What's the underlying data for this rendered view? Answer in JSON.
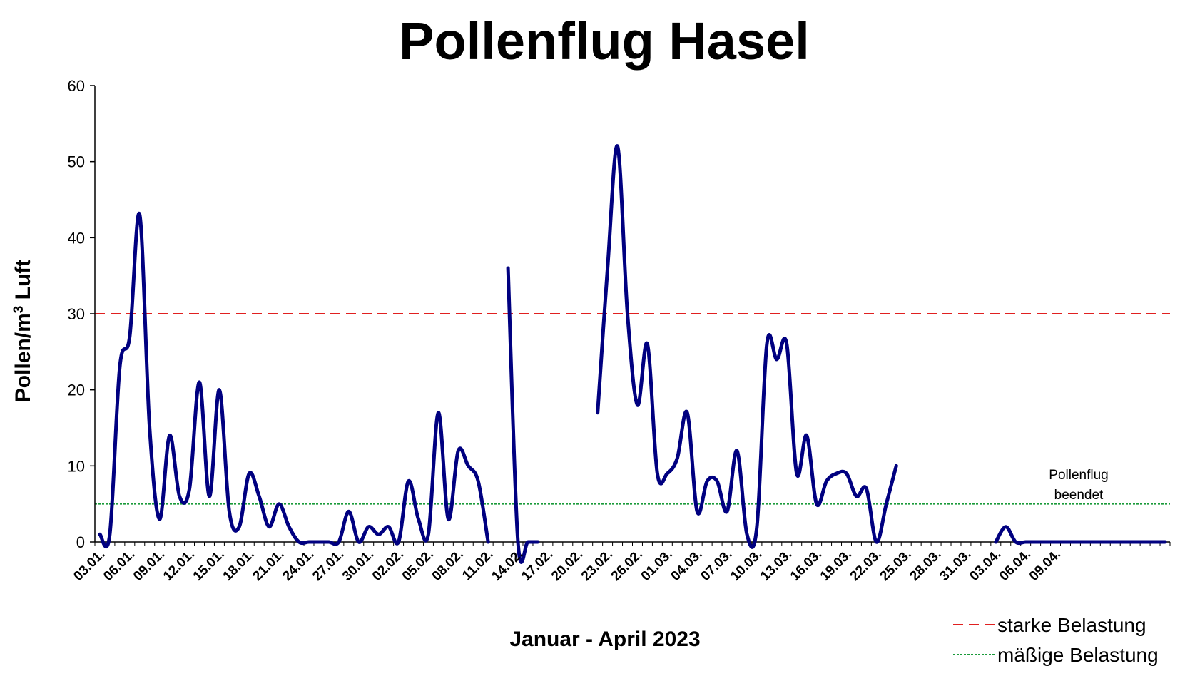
{
  "chart_data": {
    "type": "line",
    "title": "Pollenflug Hasel",
    "xlabel": "Januar  - April 2023",
    "ylabel_main": "Pollen/m",
    "ylabel_sup": "3",
    "ylabel_tail": " Luft",
    "ylim": [
      0,
      60
    ],
    "yticks": [
      "0",
      "10",
      "20",
      "30",
      "40",
      "50",
      "60"
    ],
    "grid": false,
    "xtick_labels": [
      "03.01.",
      "06.01.",
      "09.01.",
      "12.01.",
      "15.01.",
      "18.01.",
      "21.01.",
      "24.01.",
      "27.01.",
      "30.01.",
      "02.02.",
      "05.02.",
      "08.02.",
      "11.02.",
      "14.02.",
      "17.02.",
      "20.02.",
      "23.02.",
      "26.02.",
      "01.03.",
      "04.03.",
      "07.03.",
      "10.03.",
      "13.03.",
      "16.03.",
      "19.03.",
      "22.03.",
      "25.03.",
      "28.03.",
      "31.03.",
      "03.04.",
      "06.04.",
      "09.04."
    ],
    "series": [
      {
        "color": "#000080",
        "values": [
          1,
          1,
          23,
          27,
          43,
          15,
          3,
          14,
          6,
          7,
          21,
          6,
          20,
          4,
          2,
          9,
          6,
          2,
          5,
          2,
          0,
          0,
          0,
          0,
          0,
          4,
          0,
          2,
          1,
          2,
          0,
          8,
          3,
          1,
          17,
          3,
          12,
          10,
          8,
          0,
          null,
          36,
          0,
          0,
          0,
          null,
          null,
          null,
          null,
          null,
          17,
          36,
          52,
          30,
          18,
          26,
          9,
          9,
          11,
          17,
          4,
          8,
          8,
          4,
          12,
          1,
          2,
          26,
          24,
          26,
          9,
          14,
          5,
          8,
          9,
          9,
          6,
          7,
          0,
          5,
          10,
          null,
          null,
          null,
          null,
          null,
          null,
          null,
          null,
          null,
          0,
          2,
          0,
          0,
          0,
          0,
          0,
          0,
          0,
          0,
          0,
          0,
          0,
          0,
          0,
          0,
          0,
          0
        ]
      }
    ],
    "thresholds": [
      {
        "name": "starke Belastung",
        "value": 30,
        "color": "#e02020",
        "style": "dashed"
      },
      {
        "name": "mäßige Belastung",
        "value": 5,
        "color": "#1a9a3a",
        "style": "dotted"
      }
    ],
    "annotation": [
      "Pollenflug",
      "beendet"
    ],
    "legend_position": "bottom-right"
  }
}
